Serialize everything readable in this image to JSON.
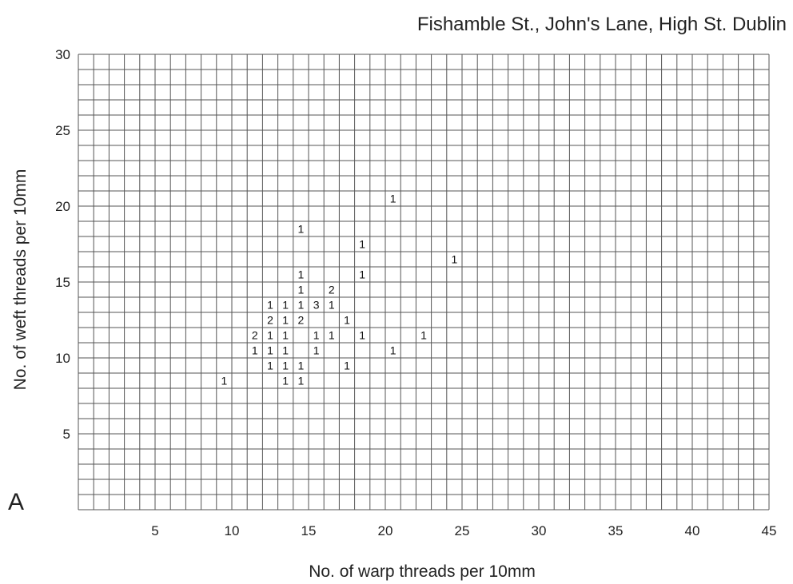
{
  "chart_data": {
    "type": "heatmap",
    "title": "Fishamble St., John's Lane, High St. Dublin",
    "panel_label": "A",
    "xlabel": "No. of warp threads per 10mm",
    "ylabel": "No. of weft threads per 10mm",
    "xlim": [
      0,
      45
    ],
    "ylim": [
      0,
      30
    ],
    "x_ticks": [
      5,
      10,
      15,
      20,
      25,
      30,
      35,
      40,
      45
    ],
    "y_ticks": [
      5,
      10,
      15,
      20,
      25,
      30
    ],
    "grid": true,
    "cells": [
      {
        "x": 21,
        "y": 21,
        "count": 1
      },
      {
        "x": 15,
        "y": 19,
        "count": 1
      },
      {
        "x": 19,
        "y": 18,
        "count": 1
      },
      {
        "x": 25,
        "y": 17,
        "count": 1
      },
      {
        "x": 15,
        "y": 16,
        "count": 1
      },
      {
        "x": 19,
        "y": 16,
        "count": 1
      },
      {
        "x": 15,
        "y": 15,
        "count": 1
      },
      {
        "x": 17,
        "y": 15,
        "count": 2
      },
      {
        "x": 13,
        "y": 14,
        "count": 1
      },
      {
        "x": 14,
        "y": 14,
        "count": 1
      },
      {
        "x": 15,
        "y": 14,
        "count": 1
      },
      {
        "x": 16,
        "y": 14,
        "count": 3
      },
      {
        "x": 17,
        "y": 14,
        "count": 1
      },
      {
        "x": 13,
        "y": 13,
        "count": 2
      },
      {
        "x": 14,
        "y": 13,
        "count": 1
      },
      {
        "x": 15,
        "y": 13,
        "count": 2
      },
      {
        "x": 18,
        "y": 13,
        "count": 1
      },
      {
        "x": 12,
        "y": 12,
        "count": 2
      },
      {
        "x": 13,
        "y": 12,
        "count": 1
      },
      {
        "x": 14,
        "y": 12,
        "count": 1
      },
      {
        "x": 16,
        "y": 12,
        "count": 1
      },
      {
        "x": 17,
        "y": 12,
        "count": 1
      },
      {
        "x": 19,
        "y": 12,
        "count": 1
      },
      {
        "x": 23,
        "y": 12,
        "count": 1
      },
      {
        "x": 12,
        "y": 11,
        "count": 1
      },
      {
        "x": 13,
        "y": 11,
        "count": 1
      },
      {
        "x": 14,
        "y": 11,
        "count": 1
      },
      {
        "x": 16,
        "y": 11,
        "count": 1
      },
      {
        "x": 21,
        "y": 11,
        "count": 1
      },
      {
        "x": 13,
        "y": 10,
        "count": 1
      },
      {
        "x": 14,
        "y": 10,
        "count": 1
      },
      {
        "x": 15,
        "y": 10,
        "count": 1
      },
      {
        "x": 18,
        "y": 10,
        "count": 1
      },
      {
        "x": 10,
        "y": 9,
        "count": 1
      },
      {
        "x": 14,
        "y": 9,
        "count": 1
      },
      {
        "x": 15,
        "y": 9,
        "count": 1
      }
    ]
  }
}
